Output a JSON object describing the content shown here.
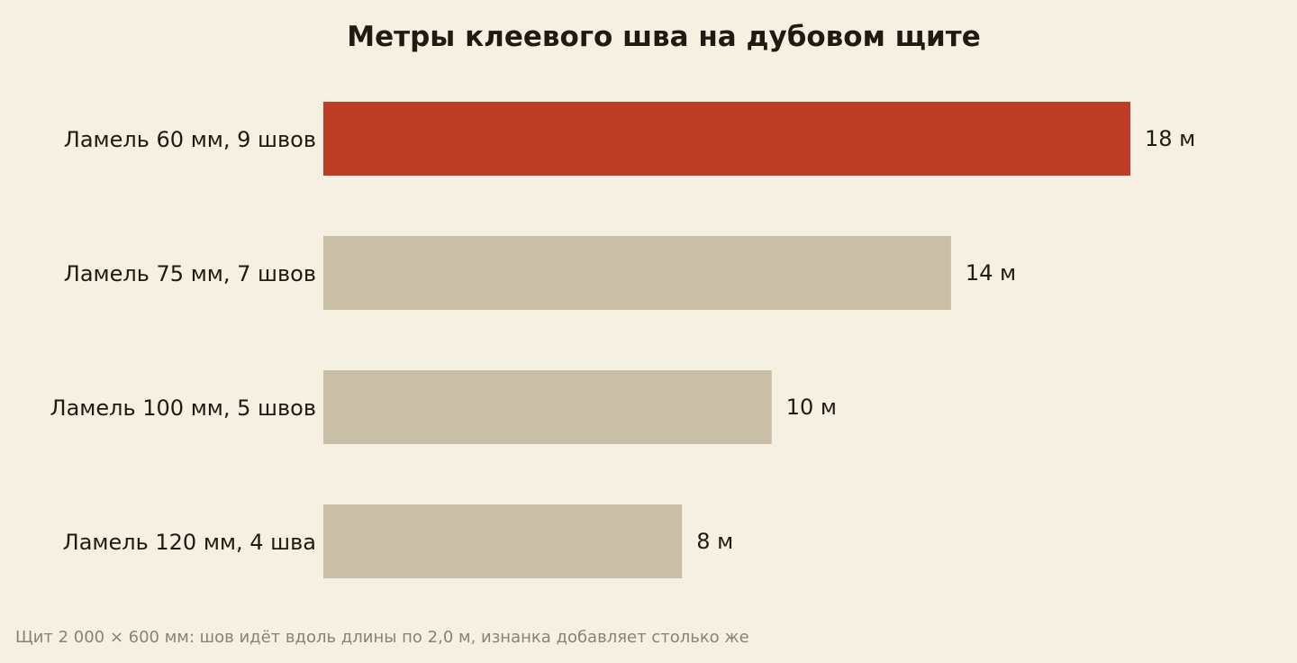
{
  "chart_data": {
    "type": "bar",
    "orientation": "horizontal",
    "title": "Метры клеевого шва на дубовом щите",
    "categories": [
      "Ламель 60 мм, 9 швов",
      "Ламель 75 мм, 7 швов",
      "Ламель 100 мм, 5 швов",
      "Ламель 120 мм, 4 шва"
    ],
    "values": [
      18,
      14,
      10,
      8
    ],
    "value_labels": [
      "18 м",
      "14 м",
      "10 м",
      "8 м"
    ],
    "highlight_index": 0,
    "colors": {
      "highlight": "#bd3d27",
      "default": "#c9bfa6"
    },
    "xlim": [
      0,
      18
    ],
    "grid": false,
    "legend": "none",
    "footnote": "Щит 2 000 × 600 мм: шов идёт вдоль длины по 2,0 м, изнанка добавляет столько же"
  }
}
